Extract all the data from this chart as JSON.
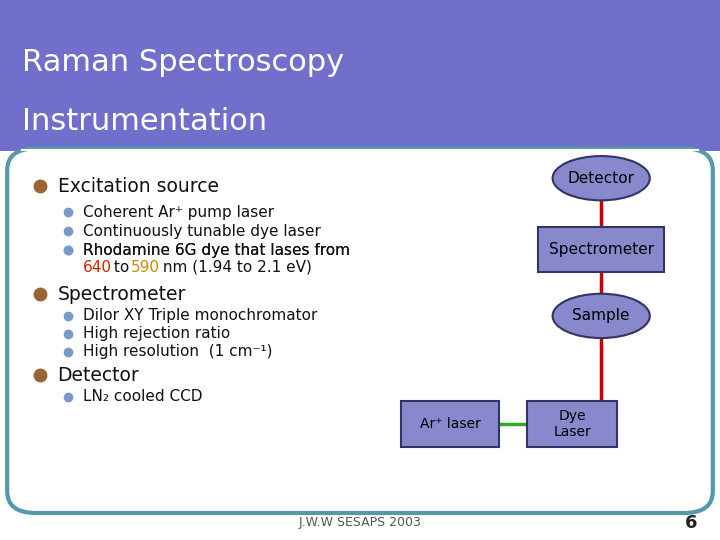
{
  "title_line1": "Raman Spectroscopy",
  "title_line2": "Instrumentation",
  "title_bg_color": "#7070cc",
  "title_text_color": "#ffffff",
  "slide_bg_color": "#ffffff",
  "content_border_color": "#5599aa",
  "content_bg_color": "#ffffff",
  "bullet_color": "#996633",
  "sub_bullet_color": "#7799cc",
  "footer_text": "J.W.W SESAPS 2003",
  "page_number": "6",
  "red_640": "#cc2200",
  "orange_590": "#cc8800",
  "node_color": "#8888cc",
  "node_edge_color": "#333366",
  "red_line": "#cc0000",
  "green_line": "#33aa22"
}
